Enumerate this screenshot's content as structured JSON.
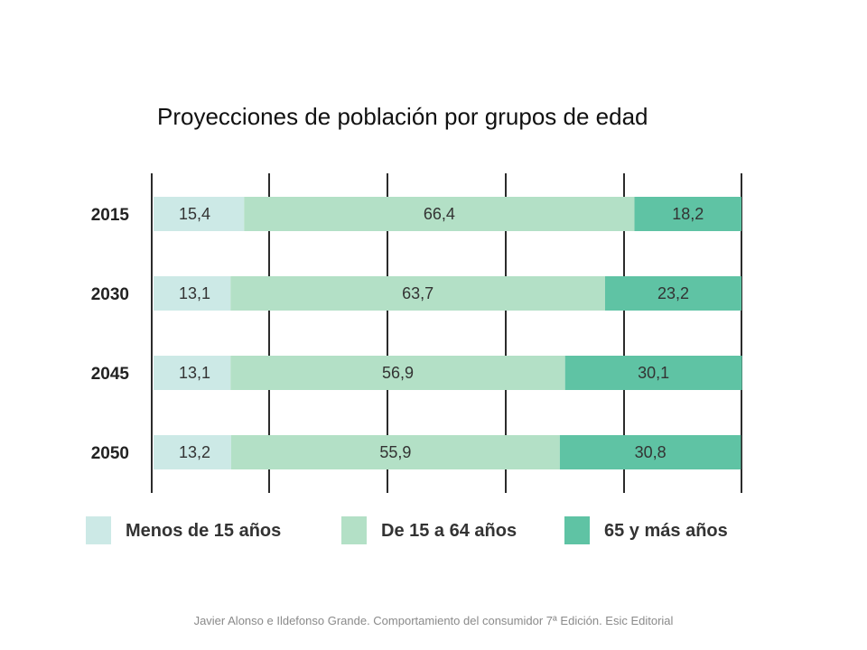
{
  "chart_data": {
    "type": "bar",
    "orientation": "horizontal",
    "stacked": true,
    "title": "Proyecciones de población por grupos de edad",
    "categories": [
      "2015",
      "2030",
      "2045",
      "2050"
    ],
    "series": [
      {
        "name": "Menos de 15 años",
        "color": "#cce9e6",
        "values": [
          15.4,
          13.1,
          13.1,
          13.2
        ],
        "labels": [
          "15,4",
          "13,1",
          "13,1",
          "13,2"
        ]
      },
      {
        "name": "De 15 a 64 años",
        "color": "#b3e0c6",
        "values": [
          66.4,
          63.7,
          56.9,
          55.9
        ],
        "labels": [
          "66,4",
          "63,7",
          "56,9",
          "55,9"
        ]
      },
      {
        "name": "65 y más años",
        "color": "#5fc3a4",
        "values": [
          18.2,
          23.2,
          30.1,
          30.8
        ],
        "labels": [
          "18,2",
          "23,2",
          "30,1",
          "30,8"
        ]
      }
    ],
    "xlim": [
      0,
      100
    ],
    "grid": true,
    "legend_position": "bottom"
  },
  "source_note": "Javier Alonso e Ildefonso Grande. Comportamiento del consumidor 7ª Edición. Esic Editorial"
}
